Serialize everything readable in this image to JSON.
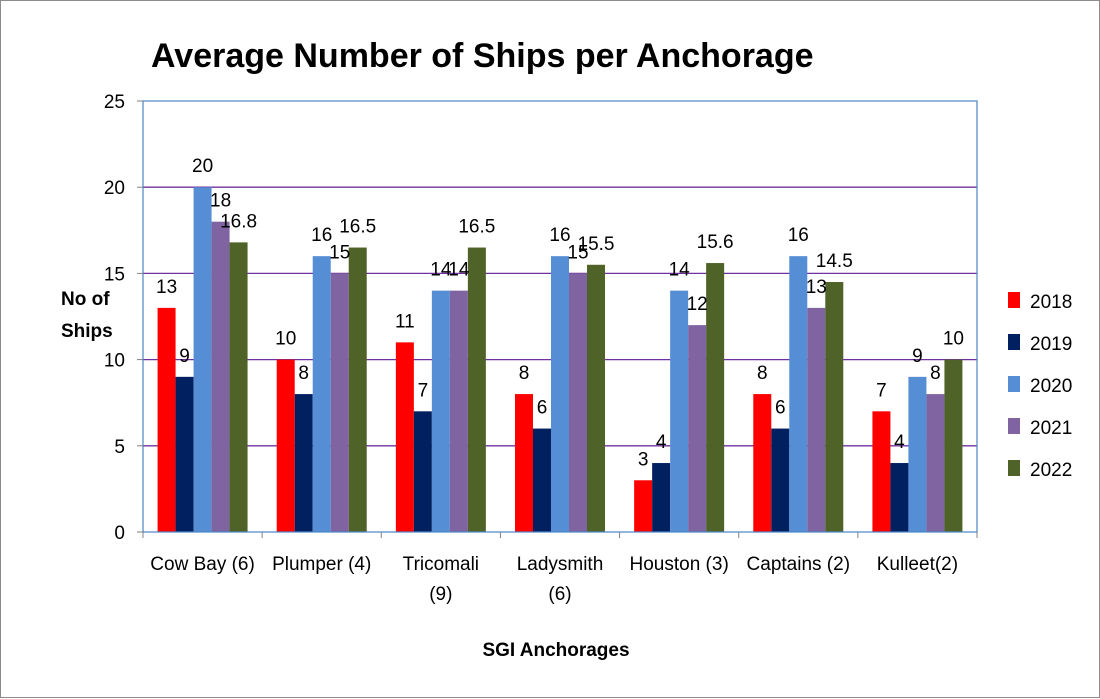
{
  "chart_data": {
    "type": "bar",
    "title": "Average Number of Ships per Anchorage",
    "xlabel": "SGI Anchorages",
    "ylabel_lines": [
      "No of",
      "Ships"
    ],
    "ylim": [
      0,
      25
    ],
    "yticks": [
      0,
      5,
      10,
      15,
      20,
      25
    ],
    "ytick_labels": [
      "0",
      "5",
      "10",
      "15",
      "20",
      "25"
    ],
    "grid": true,
    "legend": "right",
    "categories": [
      "Cow Bay (6)",
      "Plumper (4)",
      "Tricomali (9)",
      "Ladysmith (6)",
      "Houston (3)",
      "Captains (2)",
      "Kulleet(2)"
    ],
    "category_lines": [
      [
        "Cow Bay (6)"
      ],
      [
        "Plumper (4)"
      ],
      [
        "Tricomali",
        "(9)"
      ],
      [
        "Ladysmith",
        "(6)"
      ],
      [
        "Houston (3)"
      ],
      [
        "Captains (2)"
      ],
      [
        "Kulleet(2)"
      ]
    ],
    "series": [
      {
        "name": "2018",
        "color": "#ff0000",
        "values": [
          13,
          10,
          11,
          8,
          3,
          8,
          7
        ],
        "labels": [
          "13",
          "10",
          "11",
          "8",
          "3",
          "8",
          "7"
        ]
      },
      {
        "name": "2019",
        "color": "#002060",
        "values": [
          9,
          8,
          7,
          6,
          4,
          6,
          4
        ],
        "labels": [
          "9",
          "8",
          "7",
          "6",
          "4",
          "6",
          "4"
        ]
      },
      {
        "name": "2020",
        "color": "#558ed5",
        "values": [
          20,
          16,
          14,
          16,
          14,
          16,
          9
        ],
        "labels": [
          "20",
          "16",
          "14",
          "16",
          "14",
          "16",
          "9"
        ]
      },
      {
        "name": "2021",
        "color": "#8064a2",
        "values": [
          18,
          15,
          14,
          15,
          12,
          13,
          8
        ],
        "labels": [
          "18",
          "15",
          "14",
          "15",
          "12",
          "13",
          "8"
        ]
      },
      {
        "name": "2022",
        "color": "#4f6228",
        "values": [
          16.8,
          16.5,
          16.5,
          15.5,
          15.6,
          14.5,
          10
        ],
        "labels": [
          "16.8",
          "16.5",
          "16.5",
          "15.5",
          "15.6",
          "14.5",
          "10"
        ]
      }
    ],
    "colors": {
      "grid": "#7030a0",
      "plot_border": "#4a86c5",
      "axis": "#808080"
    }
  }
}
